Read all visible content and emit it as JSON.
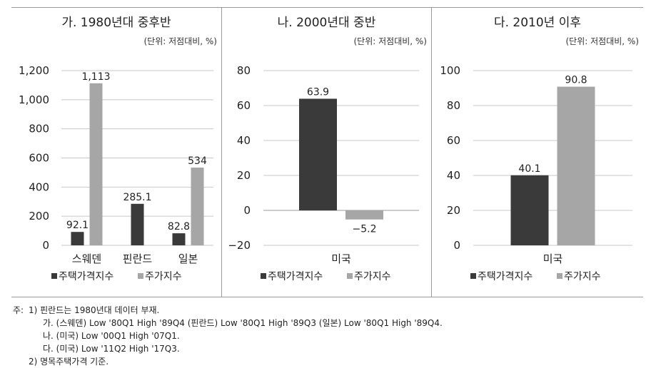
{
  "chart_data": [
    {
      "type": "bar",
      "title": "가. 1980년대 중후반",
      "unit": "(단위: 저점대비, %)",
      "categories": [
        "스웨덴",
        "핀란드",
        "일본"
      ],
      "series": [
        {
          "name": "주택가격지수",
          "values": [
            92.1,
            285.1,
            82.8
          ],
          "color": "#3a3a3a"
        },
        {
          "name": "주가지수",
          "values": [
            1113,
            null,
            534
          ],
          "color": "#a6a6a6"
        }
      ],
      "value_labels": [
        [
          "92.1",
          "285.1",
          "82.8"
        ],
        [
          "1,113",
          "",
          "534"
        ]
      ],
      "ylim": [
        0,
        1200
      ],
      "yticks": [
        0,
        200,
        400,
        600,
        800,
        1000,
        1200
      ],
      "ytick_labels": [
        "0",
        "200",
        "400",
        "600",
        "800",
        "1,000",
        "1,200"
      ],
      "grid": true,
      "legend": "bottom"
    },
    {
      "type": "bar",
      "title": "나. 2000년대 중반",
      "unit": "(단위: 저점대비, %)",
      "categories": [
        "미국"
      ],
      "series": [
        {
          "name": "주택가격지수",
          "values": [
            63.9
          ],
          "color": "#3a3a3a"
        },
        {
          "name": "주가지수",
          "values": [
            -5.2
          ],
          "color": "#a6a6a6"
        }
      ],
      "value_labels": [
        [
          "63.9"
        ],
        [
          "−5.2"
        ]
      ],
      "ylim": [
        -20,
        80
      ],
      "yticks": [
        -20,
        0,
        20,
        40,
        60,
        80
      ],
      "ytick_labels": [
        "−20",
        "0",
        "20",
        "40",
        "60",
        "80"
      ],
      "grid": true,
      "legend": "bottom"
    },
    {
      "type": "bar",
      "title": "다. 2010년 이후",
      "unit": "(단위: 저점대비, %)",
      "categories": [
        "미국"
      ],
      "series": [
        {
          "name": "주택가격지수",
          "values": [
            40.1
          ],
          "color": "#3a3a3a"
        },
        {
          "name": "주가지수",
          "values": [
            90.8
          ],
          "color": "#a6a6a6"
        }
      ],
      "value_labels": [
        [
          "40.1"
        ],
        [
          "90.8"
        ]
      ],
      "ylim": [
        0,
        100
      ],
      "yticks": [
        0,
        20,
        40,
        60,
        80,
        100
      ],
      "ytick_labels": [
        "0",
        "20",
        "40",
        "60",
        "80",
        "100"
      ],
      "grid": true,
      "legend": "bottom"
    }
  ],
  "notes": {
    "prefix": "주:",
    "lines": [
      "1) 핀란드는 1980년대 데이터 부재.",
      "가. (스웨덴) Low '80Q1 High '89Q4 (핀란드) Low '80Q1 High '89Q3 (일본) Low '80Q1 High '89Q4.",
      "나. (미국) Low '00Q1 High '07Q1.",
      "다. (미국) Low '11Q2 High '17Q3.",
      "2) 명목주택가격 기준."
    ]
  }
}
